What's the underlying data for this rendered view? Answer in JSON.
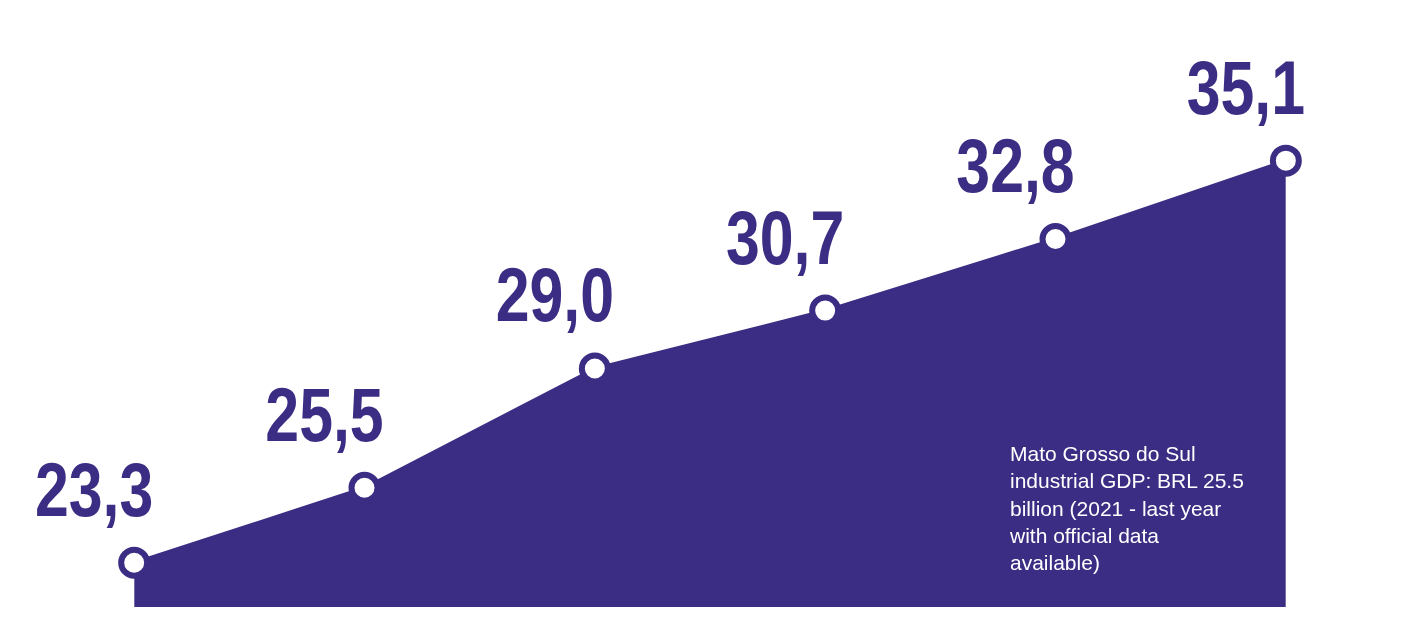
{
  "chart_data": {
    "type": "area",
    "categories": [
      null,
      null,
      null,
      null,
      null,
      null
    ],
    "values": [
      23.3,
      25.5,
      29.0,
      30.7,
      32.8,
      35.1
    ],
    "value_labels": [
      "23,3",
      "25,5",
      "29,0",
      "30,7",
      "32,8",
      "35,1"
    ],
    "color": "#3b2d84",
    "marker": "circle",
    "annotations": [
      "Mato Grosso do Sul industrial GDP: BRL 25.5 billion (2021 - last year with official data available)"
    ]
  }
}
